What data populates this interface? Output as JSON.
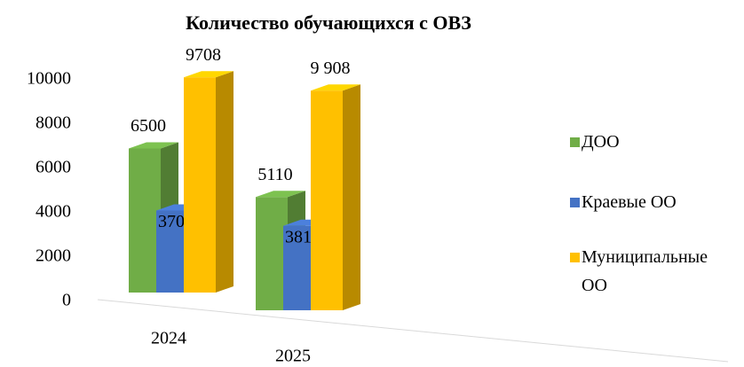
{
  "chart_data": {
    "type": "bar3d",
    "title": "Количество обучающихся с ОВЗ",
    "categories": [
      "2024",
      "2025"
    ],
    "series": [
      {
        "name": "ДОО",
        "color": "#70ad47",
        "values": [
          6500,
          5110
        ]
      },
      {
        "name": "Краевые ОО",
        "color": "#4472c4",
        "values": [
          3702,
          3812
        ]
      },
      {
        "name": "Муниципальные ОО",
        "color": "#ffc000",
        "values": [
          9708,
          9908
        ],
        "value_labels": [
          "9708",
          "9 908"
        ]
      }
    ],
    "ylim": [
      0,
      10000
    ],
    "yticks": [
      0,
      2000,
      4000,
      6000,
      8000,
      10000
    ],
    "grid": false,
    "legend": "right"
  }
}
